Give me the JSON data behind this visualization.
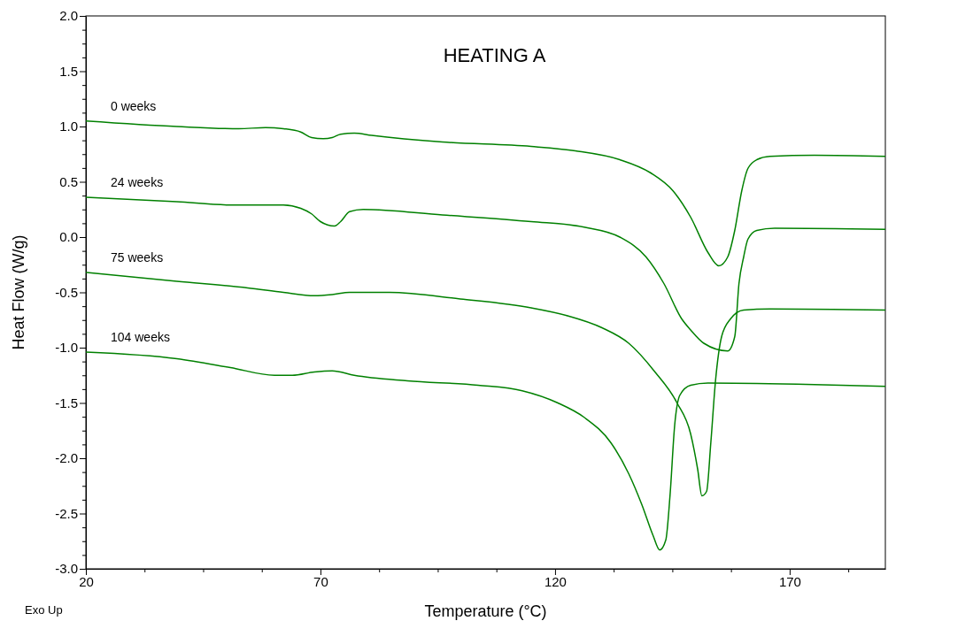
{
  "chart_data": {
    "type": "line",
    "title": "HEATING A",
    "xlabel": "Temperature (°C)",
    "ylabel": "Heat Flow (W/g)",
    "annotations": [
      "Exo Up"
    ],
    "xlim": [
      20,
      190.4
    ],
    "xticks": [
      20,
      {
        "value": 32.5,
        "label": null
      },
      {
        "value": 45,
        "label": null
      },
      {
        "value": 57.5,
        "label": null
      },
      70,
      {
        "value": 82.5,
        "label": null
      },
      {
        "value": 95,
        "label": null
      },
      {
        "value": 107.5,
        "label": null
      },
      120,
      {
        "value": 132.5,
        "label": null
      },
      {
        "value": 145,
        "label": null
      },
      {
        "value": 157.5,
        "label": null
      },
      170,
      {
        "value": 182.5,
        "label": null
      }
    ],
    "ylim": [
      -3,
      2
    ],
    "yticks": [
      {
        "value": -3,
        "label": "-3.0"
      },
      {
        "value": -2.875,
        "label": null
      },
      {
        "value": -2.75,
        "label": null
      },
      {
        "value": -2.625,
        "label": null
      },
      -2.5,
      {
        "value": -2.375,
        "label": null
      },
      {
        "value": -2.25,
        "label": null
      },
      {
        "value": -2.125,
        "label": null
      },
      {
        "value": -2,
        "label": "-2.0"
      },
      {
        "value": -1.875,
        "label": null
      },
      {
        "value": -1.75,
        "label": null
      },
      {
        "value": -1.625,
        "label": null
      },
      -1.5,
      {
        "value": -1.375,
        "label": null
      },
      {
        "value": -1.25,
        "label": null
      },
      {
        "value": -1.125,
        "label": null
      },
      {
        "value": -1,
        "label": "-1.0"
      },
      {
        "value": -0.875,
        "label": null
      },
      {
        "value": -0.75,
        "label": null
      },
      {
        "value": -0.625,
        "label": null
      },
      -0.5,
      {
        "value": -0.375,
        "label": null
      },
      {
        "value": -0.25,
        "label": null
      },
      {
        "value": -0.125,
        "label": null
      },
      {
        "value": 0,
        "label": "0.0"
      },
      {
        "value": 0.125,
        "label": null
      },
      {
        "value": 0.25,
        "label": null
      },
      {
        "value": 0.375,
        "label": null
      },
      0.5,
      {
        "value": 0.625,
        "label": null
      },
      {
        "value": 0.75,
        "label": null
      },
      {
        "value": 0.875,
        "label": null
      },
      {
        "value": 1,
        "label": "1.0"
      },
      {
        "value": 1.125,
        "label": null
      },
      {
        "value": 1.25,
        "label": null
      },
      {
        "value": 1.375,
        "label": null
      },
      1.5,
      {
        "value": 1.625,
        "label": null
      },
      {
        "value": 1.75,
        "label": null
      },
      {
        "value": 1.875,
        "label": null
      },
      {
        "value": 2,
        "label": "2.0"
      }
    ],
    "grid": false,
    "legend": false,
    "marker": "none",
    "line_style": "solid",
    "series": [
      {
        "name": "0 weeks",
        "color": "#008000",
        "x": [
          20,
          39.4,
          52.6,
          58.3,
          62.1,
          65.8,
          68.1,
          70.6,
          72.5,
          74.3,
          77.2,
          80.9,
          96,
          114.9,
          124.3,
          133.8,
          140.4,
          145.1,
          148.9,
          152.6,
          154.9,
          156.8,
          158.3,
          159.8,
          161.1,
          163,
          165.8,
          175.3,
          190.4
        ],
        "values": [
          1.05,
          1.0,
          0.98,
          0.99,
          0.98,
          0.95,
          0.9,
          0.89,
          0.9,
          0.93,
          0.94,
          0.92,
          0.86,
          0.82,
          0.78,
          0.7,
          0.58,
          0.42,
          0.18,
          -0.14,
          -0.26,
          -0.18,
          0.06,
          0.42,
          0.62,
          0.7,
          0.73,
          0.74,
          0.73
        ]
      },
      {
        "name": "24 weeks",
        "color": "#008000",
        "x": [
          20,
          39.4,
          50.8,
          62.1,
          65.8,
          68.1,
          70,
          71.5,
          73,
          74.3,
          76.2,
          79.1,
          96,
          114.9,
          126.2,
          133.8,
          139.4,
          143.2,
          147,
          148.9,
          151.7,
          156.8,
          158.3,
          159.2,
          160.2,
          161.1,
          163,
          166.8,
          190.4
        ],
        "values": [
          0.36,
          0.32,
          0.29,
          0.29,
          0.26,
          0.21,
          0.14,
          0.11,
          0.1,
          0.14,
          0.23,
          0.25,
          0.2,
          0.14,
          0.09,
          0.0,
          -0.18,
          -0.42,
          -0.74,
          -0.84,
          -0.96,
          -1.03,
          -0.9,
          -0.42,
          -0.18,
          -0.02,
          0.06,
          0.08,
          0.07
        ]
      },
      {
        "name": "75 weeks",
        "color": "#008000",
        "x": [
          20,
          39.4,
          54.5,
          62.1,
          68.7,
          72.5,
          76.2,
          84.7,
          99.8,
          114.9,
          122.5,
          130,
          135.7,
          141.3,
          146,
          148.9,
          150.4,
          151.3,
          152.3,
          153.2,
          154.2,
          155.5,
          157.4,
          160.2,
          165.8,
          190.4
        ],
        "values": [
          -0.32,
          -0.4,
          -0.46,
          -0.5,
          -0.53,
          -0.52,
          -0.5,
          -0.5,
          -0.56,
          -0.64,
          -0.71,
          -0.82,
          -0.96,
          -1.22,
          -1.5,
          -1.78,
          -2.1,
          -2.34,
          -2.3,
          -1.86,
          -1.3,
          -0.9,
          -0.74,
          -0.66,
          -0.65,
          -0.66
        ]
      },
      {
        "name": "104 weeks",
        "color": "#008000",
        "x": [
          20,
          39.4,
          50.8,
          60.2,
          64,
          68.7,
          72.5,
          77.2,
          88.5,
          103.6,
          113,
          120.6,
          126.2,
          131.9,
          135.7,
          138.5,
          140.9,
          142.3,
          143.6,
          144.5,
          145.5,
          146.6,
          148.9,
          152.6,
          171.5,
          190.4
        ],
        "values": [
          -1.04,
          -1.1,
          -1.18,
          -1.25,
          -1.25,
          -1.22,
          -1.21,
          -1.25,
          -1.3,
          -1.34,
          -1.39,
          -1.5,
          -1.63,
          -1.86,
          -2.14,
          -2.42,
          -2.7,
          -2.83,
          -2.74,
          -2.34,
          -1.7,
          -1.43,
          -1.34,
          -1.32,
          -1.33,
          -1.35
        ]
      }
    ]
  }
}
